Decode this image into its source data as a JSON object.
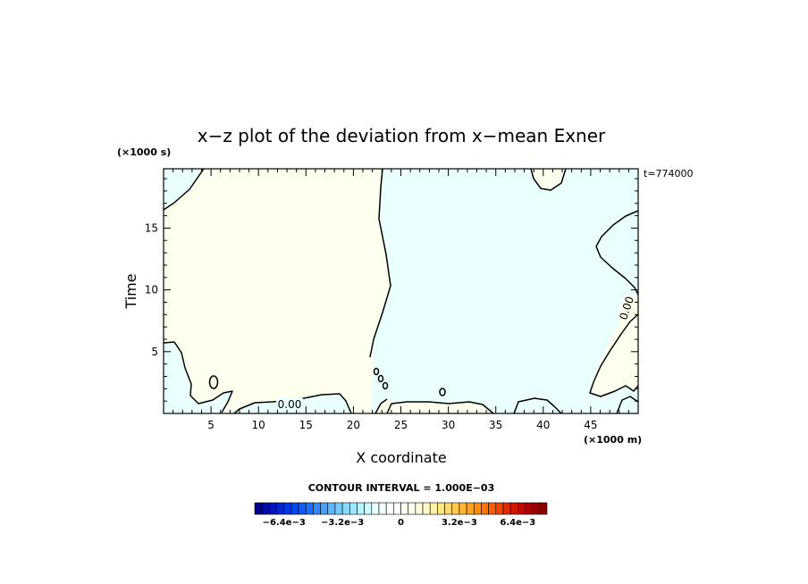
{
  "chart_data": {
    "type": "contour",
    "title": "x−z plot of the deviation from x−mean Exner",
    "xlabel": "X coordinate",
    "ylabel": "Time",
    "x_unit": "(×1000 m)",
    "y_unit": "(×1000 s)",
    "time_label": "t=774000",
    "xlim": [
      0,
      50
    ],
    "ylim": [
      0,
      19.8
    ],
    "x_ticks": [
      5,
      10,
      15,
      20,
      25,
      30,
      35,
      40,
      45
    ],
    "y_ticks": [
      5,
      10,
      15
    ],
    "contour_label": "0.00",
    "contour_interval": "CONTOUR INTERVAL = 1.000E−03",
    "region_colors": {
      "positive": "#fffff0",
      "negative": "#eaffff"
    },
    "colorbar": {
      "tick_labels": [
        "−6.4e−3",
        "−3.2e−3",
        "0",
        "3.2e−3",
        "6.4e−3"
      ],
      "tick_values": [
        -6.4,
        -3.2,
        0,
        3.2,
        6.4
      ],
      "range": [
        -8,
        8
      ],
      "n_bins": 40,
      "colors": [
        "#00008b",
        "#0019c0",
        "#0040e8",
        "#1a6cff",
        "#4da6ff",
        "#80d4ff",
        "#b0f0ff",
        "#eaffff",
        "#ffffff",
        "#fffff0",
        "#fffacd",
        "#ffe680",
        "#ffc040",
        "#ff9010",
        "#ff5a00",
        "#e02000",
        "#b00000",
        "#8b0000"
      ]
    }
  }
}
